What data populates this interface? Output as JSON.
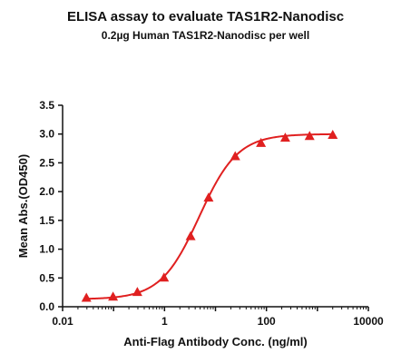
{
  "chart_data": {
    "type": "scatter",
    "title": "ELISA assay to evaluate TAS1R2-Nanodisc",
    "subtitle": "0.2µg Human TAS1R2-Nanodisc per well",
    "xlabel": "Anti-Flag Antibody Conc. (ng/ml)",
    "ylabel": "Mean Abs.(OD450)",
    "xscale": "log",
    "xlim": [
      0.01,
      10000
    ],
    "ylim": [
      0,
      3.5
    ],
    "x_ticks": [
      "0.01",
      "1",
      "100",
      "10000"
    ],
    "y_ticks": [
      "0.0",
      "0.5",
      "1.0",
      "1.5",
      "2.0",
      "2.5",
      "3.0",
      "3.5"
    ],
    "grid": false,
    "color": "#e02020",
    "marker": "triangle",
    "series": [
      {
        "x": [
          0.0293,
          0.0977,
          0.293,
          0.977,
          3.25,
          7.32,
          24.4,
          78.1,
          234,
          703,
          2000
        ],
        "y": [
          0.15,
          0.17,
          0.25,
          0.5,
          1.22,
          1.89,
          2.61,
          2.84,
          2.93,
          2.96,
          2.98
        ]
      }
    ],
    "fit_curve": {
      "type": "4PL",
      "bottom": 0.13,
      "top": 3.0,
      "ec50": 4.8,
      "hill": 1.15
    }
  }
}
